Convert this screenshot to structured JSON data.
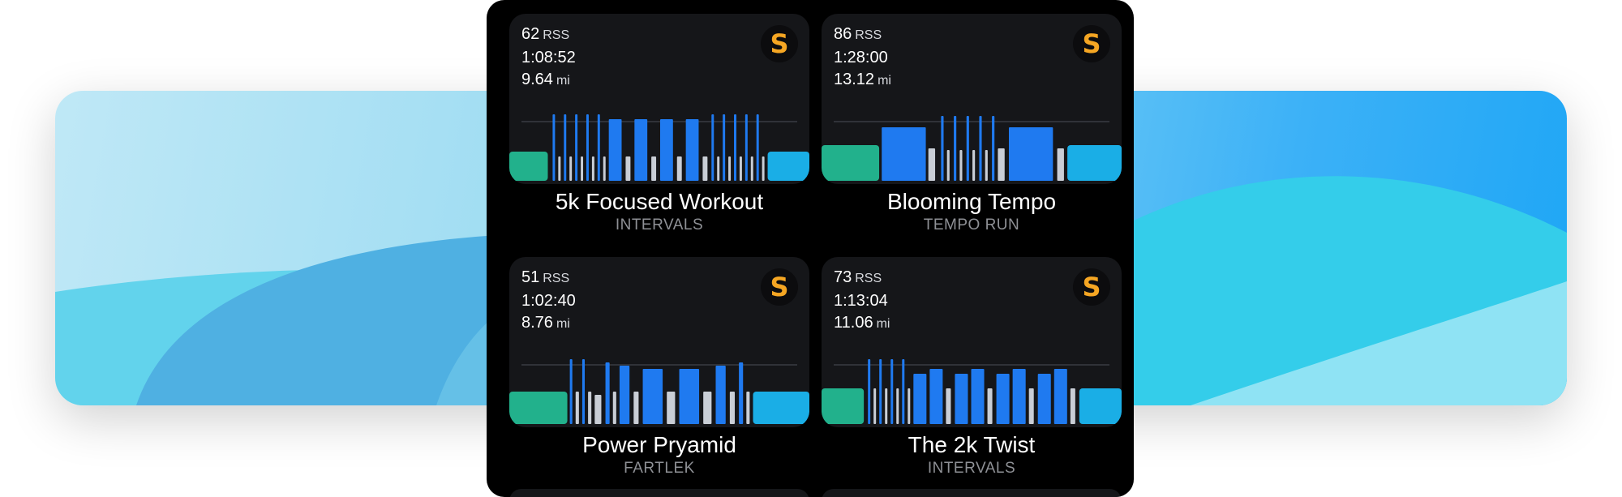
{
  "workouts": [
    {
      "rss": "62",
      "rss_unit": "RSS",
      "duration": "1:08:52",
      "distance": "9.64",
      "distance_unit": "mi",
      "badge": "S",
      "title": "5k Focused Workout",
      "type": "INTERVALS",
      "segments": [
        {
          "kind": "warmup",
          "w": 48,
          "h": 36
        },
        {
          "kind": "gap",
          "w": 6
        },
        {
          "kind": "int",
          "w": 3,
          "h": 82
        },
        {
          "kind": "gap",
          "w": 4
        },
        {
          "kind": "rest",
          "w": 3,
          "h": 30
        },
        {
          "kind": "gap",
          "w": 4
        },
        {
          "kind": "int",
          "w": 3,
          "h": 82
        },
        {
          "kind": "gap",
          "w": 4
        },
        {
          "kind": "rest",
          "w": 3,
          "h": 30
        },
        {
          "kind": "gap",
          "w": 4
        },
        {
          "kind": "int",
          "w": 3,
          "h": 82
        },
        {
          "kind": "gap",
          "w": 4
        },
        {
          "kind": "rest",
          "w": 3,
          "h": 30
        },
        {
          "kind": "gap",
          "w": 4
        },
        {
          "kind": "int",
          "w": 3,
          "h": 82
        },
        {
          "kind": "gap",
          "w": 4
        },
        {
          "kind": "rest",
          "w": 3,
          "h": 30
        },
        {
          "kind": "gap",
          "w": 4
        },
        {
          "kind": "int",
          "w": 3,
          "h": 82
        },
        {
          "kind": "gap",
          "w": 4
        },
        {
          "kind": "rest",
          "w": 3,
          "h": 30
        },
        {
          "kind": "gap",
          "w": 4
        },
        {
          "kind": "block",
          "w": 16,
          "h": 76
        },
        {
          "kind": "gap",
          "w": 5
        },
        {
          "kind": "rest",
          "w": 6,
          "h": 30
        },
        {
          "kind": "gap",
          "w": 5
        },
        {
          "kind": "block",
          "w": 16,
          "h": 76
        },
        {
          "kind": "gap",
          "w": 5
        },
        {
          "kind": "rest",
          "w": 6,
          "h": 30
        },
        {
          "kind": "gap",
          "w": 5
        },
        {
          "kind": "block",
          "w": 16,
          "h": 76
        },
        {
          "kind": "gap",
          "w": 5
        },
        {
          "kind": "rest",
          "w": 6,
          "h": 30
        },
        {
          "kind": "gap",
          "w": 5
        },
        {
          "kind": "block",
          "w": 16,
          "h": 76
        },
        {
          "kind": "gap",
          "w": 5
        },
        {
          "kind": "rest",
          "w": 6,
          "h": 30
        },
        {
          "kind": "gap",
          "w": 5
        },
        {
          "kind": "int",
          "w": 3,
          "h": 82
        },
        {
          "kind": "gap",
          "w": 4
        },
        {
          "kind": "rest",
          "w": 3,
          "h": 30
        },
        {
          "kind": "gap",
          "w": 4
        },
        {
          "kind": "int",
          "w": 3,
          "h": 82
        },
        {
          "kind": "gap",
          "w": 4
        },
        {
          "kind": "rest",
          "w": 3,
          "h": 30
        },
        {
          "kind": "gap",
          "w": 4
        },
        {
          "kind": "int",
          "w": 3,
          "h": 82
        },
        {
          "kind": "gap",
          "w": 4
        },
        {
          "kind": "rest",
          "w": 3,
          "h": 30
        },
        {
          "kind": "gap",
          "w": 4
        },
        {
          "kind": "int",
          "w": 3,
          "h": 82
        },
        {
          "kind": "gap",
          "w": 4
        },
        {
          "kind": "rest",
          "w": 3,
          "h": 30
        },
        {
          "kind": "gap",
          "w": 4
        },
        {
          "kind": "int",
          "w": 3,
          "h": 82
        },
        {
          "kind": "gap",
          "w": 4
        },
        {
          "kind": "rest",
          "w": 3,
          "h": 30
        },
        {
          "kind": "gap",
          "w": 4
        },
        {
          "kind": "cooldown",
          "w": 52,
          "h": 36
        }
      ]
    },
    {
      "rss": "86",
      "rss_unit": "RSS",
      "duration": "1:28:00",
      "distance": "13.12",
      "distance_unit": "mi",
      "badge": "S",
      "title": "Blooming Tempo",
      "type": "TEMPO RUN",
      "segments": [
        {
          "kind": "warmup",
          "w": 68,
          "h": 44
        },
        {
          "kind": "gap",
          "w": 3
        },
        {
          "kind": "block",
          "w": 52,
          "h": 66
        },
        {
          "kind": "gap",
          "w": 3
        },
        {
          "kind": "rest",
          "w": 8,
          "h": 40
        },
        {
          "kind": "gap",
          "w": 7
        },
        {
          "kind": "int",
          "w": 3,
          "h": 80
        },
        {
          "kind": "gap",
          "w": 4
        },
        {
          "kind": "rest",
          "w": 3,
          "h": 38
        },
        {
          "kind": "gap",
          "w": 5
        },
        {
          "kind": "int",
          "w": 3,
          "h": 80
        },
        {
          "kind": "gap",
          "w": 4
        },
        {
          "kind": "rest",
          "w": 3,
          "h": 38
        },
        {
          "kind": "gap",
          "w": 5
        },
        {
          "kind": "int",
          "w": 3,
          "h": 80
        },
        {
          "kind": "gap",
          "w": 4
        },
        {
          "kind": "rest",
          "w": 3,
          "h": 38
        },
        {
          "kind": "gap",
          "w": 5
        },
        {
          "kind": "int",
          "w": 3,
          "h": 80
        },
        {
          "kind": "gap",
          "w": 4
        },
        {
          "kind": "rest",
          "w": 3,
          "h": 38
        },
        {
          "kind": "gap",
          "w": 5
        },
        {
          "kind": "int",
          "w": 3,
          "h": 80
        },
        {
          "kind": "gap",
          "w": 4
        },
        {
          "kind": "rest",
          "w": 8,
          "h": 40
        },
        {
          "kind": "gap",
          "w": 5
        },
        {
          "kind": "block",
          "w": 52,
          "h": 66
        },
        {
          "kind": "gap",
          "w": 5
        },
        {
          "kind": "rest",
          "w": 8,
          "h": 40
        },
        {
          "kind": "gap",
          "w": 4
        },
        {
          "kind": "cooldown",
          "w": 64,
          "h": 44
        }
      ]
    },
    {
      "rss": "51",
      "rss_unit": "RSS",
      "duration": "1:02:40",
      "distance": "8.76",
      "distance_unit": "mi",
      "badge": "S",
      "title": "Power Pryamid",
      "type": "FARTLEK",
      "segments": [
        {
          "kind": "warmup",
          "w": 70,
          "h": 40
        },
        {
          "kind": "gap",
          "w": 3
        },
        {
          "kind": "int",
          "w": 3,
          "h": 80
        },
        {
          "kind": "gap",
          "w": 4
        },
        {
          "kind": "rest",
          "w": 4,
          "h": 40
        },
        {
          "kind": "gap",
          "w": 4
        },
        {
          "kind": "int",
          "w": 3,
          "h": 80
        },
        {
          "kind": "gap",
          "w": 4
        },
        {
          "kind": "rest",
          "w": 4,
          "h": 40
        },
        {
          "kind": "gap",
          "w": 4
        },
        {
          "kind": "rest",
          "w": 8,
          "h": 36
        },
        {
          "kind": "gap",
          "w": 5
        },
        {
          "kind": "block",
          "w": 5,
          "h": 76
        },
        {
          "kind": "gap",
          "w": 4
        },
        {
          "kind": "rest",
          "w": 4,
          "h": 40
        },
        {
          "kind": "gap",
          "w": 4
        },
        {
          "kind": "block",
          "w": 12,
          "h": 72
        },
        {
          "kind": "gap",
          "w": 5
        },
        {
          "kind": "rest",
          "w": 6,
          "h": 40
        },
        {
          "kind": "gap",
          "w": 5
        },
        {
          "kind": "block",
          "w": 24,
          "h": 68
        },
        {
          "kind": "gap",
          "w": 5
        },
        {
          "kind": "rest",
          "w": 10,
          "h": 40
        },
        {
          "kind": "gap",
          "w": 5
        },
        {
          "kind": "block",
          "w": 24,
          "h": 68
        },
        {
          "kind": "gap",
          "w": 5
        },
        {
          "kind": "rest",
          "w": 10,
          "h": 40
        },
        {
          "kind": "gap",
          "w": 5
        },
        {
          "kind": "block",
          "w": 12,
          "h": 72
        },
        {
          "kind": "gap",
          "w": 5
        },
        {
          "kind": "rest",
          "w": 6,
          "h": 40
        },
        {
          "kind": "gap",
          "w": 5
        },
        {
          "kind": "block",
          "w": 5,
          "h": 76
        },
        {
          "kind": "gap",
          "w": 4
        },
        {
          "kind": "rest",
          "w": 4,
          "h": 40
        },
        {
          "kind": "gap",
          "w": 4
        },
        {
          "kind": "cooldown",
          "w": 68,
          "h": 40
        }
      ]
    },
    {
      "rss": "73",
      "rss_unit": "RSS",
      "duration": "1:13:04",
      "distance": "11.06",
      "distance_unit": "mi",
      "badge": "S",
      "title": "The 2k Twist",
      "type": "INTERVALS",
      "segments": [
        {
          "kind": "warmup",
          "w": 52,
          "h": 44
        },
        {
          "kind": "gap",
          "w": 5
        },
        {
          "kind": "int",
          "w": 3,
          "h": 80
        },
        {
          "kind": "gap",
          "w": 4
        },
        {
          "kind": "rest",
          "w": 3,
          "h": 44
        },
        {
          "kind": "gap",
          "w": 4
        },
        {
          "kind": "int",
          "w": 3,
          "h": 80
        },
        {
          "kind": "gap",
          "w": 4
        },
        {
          "kind": "rest",
          "w": 3,
          "h": 44
        },
        {
          "kind": "gap",
          "w": 4
        },
        {
          "kind": "int",
          "w": 3,
          "h": 80
        },
        {
          "kind": "gap",
          "w": 4
        },
        {
          "kind": "rest",
          "w": 3,
          "h": 44
        },
        {
          "kind": "gap",
          "w": 4
        },
        {
          "kind": "int",
          "w": 3,
          "h": 80
        },
        {
          "kind": "gap",
          "w": 4
        },
        {
          "kind": "rest",
          "w": 3,
          "h": 44
        },
        {
          "kind": "gap",
          "w": 4
        },
        {
          "kind": "block",
          "w": 16,
          "h": 62
        },
        {
          "kind": "gap",
          "w": 4
        },
        {
          "kind": "block",
          "w": 16,
          "h": 68
        },
        {
          "kind": "gap",
          "w": 4
        },
        {
          "kind": "rest",
          "w": 6,
          "h": 44
        },
        {
          "kind": "gap",
          "w": 5
        },
        {
          "kind": "block",
          "w": 16,
          "h": 62
        },
        {
          "kind": "gap",
          "w": 4
        },
        {
          "kind": "block",
          "w": 16,
          "h": 68
        },
        {
          "kind": "gap",
          "w": 4
        },
        {
          "kind": "rest",
          "w": 6,
          "h": 44
        },
        {
          "kind": "gap",
          "w": 5
        },
        {
          "kind": "block",
          "w": 16,
          "h": 62
        },
        {
          "kind": "gap",
          "w": 4
        },
        {
          "kind": "block",
          "w": 16,
          "h": 68
        },
        {
          "kind": "gap",
          "w": 4
        },
        {
          "kind": "rest",
          "w": 6,
          "h": 44
        },
        {
          "kind": "gap",
          "w": 5
        },
        {
          "kind": "block",
          "w": 16,
          "h": 62
        },
        {
          "kind": "gap",
          "w": 4
        },
        {
          "kind": "block",
          "w": 16,
          "h": 68
        },
        {
          "kind": "gap",
          "w": 4
        },
        {
          "kind": "rest",
          "w": 6,
          "h": 44
        },
        {
          "kind": "gap",
          "w": 5
        },
        {
          "kind": "cooldown",
          "w": 52,
          "h": 44
        }
      ]
    }
  ],
  "colors": {
    "warmup": "#22b18c",
    "cooldown": "#1aaee6",
    "int": "#1f7af0",
    "block": "#1f7af0",
    "rest": "#c9ced6",
    "threshold": "#3a3c42"
  }
}
